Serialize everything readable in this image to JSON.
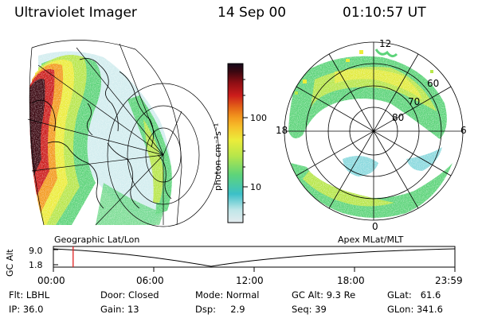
{
  "header": {
    "instrument": "Ultraviolet Imager",
    "date": "14 Sep 00",
    "time": "01:10:57 UT"
  },
  "geo_label": "Geographic Lat/Lon",
  "apex_label": "Apex  MLat/MLT",
  "colorbar": {
    "unit_label": "photon cm⁻²s⁻¹",
    "ticks": [
      "100",
      "10"
    ],
    "colors": [
      "#dfe8ea",
      "#b9e2e4",
      "#3cc0c8",
      "#5dd47a",
      "#b7e64a",
      "#ecec3a",
      "#f6c12a",
      "#f39a1e",
      "#e56817",
      "#cc1c1b",
      "#8e0e14",
      "#3a0710",
      "#140a1c"
    ]
  },
  "polar": {
    "mlt_labels": [
      "12",
      "18",
      "6",
      "0"
    ],
    "mlat_labels": [
      "60",
      "70",
      "80"
    ]
  },
  "altitude_plot": {
    "axis_label": "GC Alt",
    "y_ticks": [
      "9.0",
      "1.8"
    ],
    "x_ticks": [
      "00:00",
      "06:00",
      "12:00",
      "18:00",
      "23:59"
    ],
    "marker_time_hours": 1.18
  },
  "footer": {
    "filter": "Flt: LBHL",
    "ip": "IP: 36.0",
    "door": "Door: Closed",
    "gain": "Gain: 13",
    "mode": "Mode: Normal",
    "dsp": "Dsp:     2.9",
    "gc_alt": "GC Alt: 9.3 Re",
    "seq": "Seq: 39",
    "glat": "GLat:   61.6",
    "glon": "GLon: 341.6"
  }
}
